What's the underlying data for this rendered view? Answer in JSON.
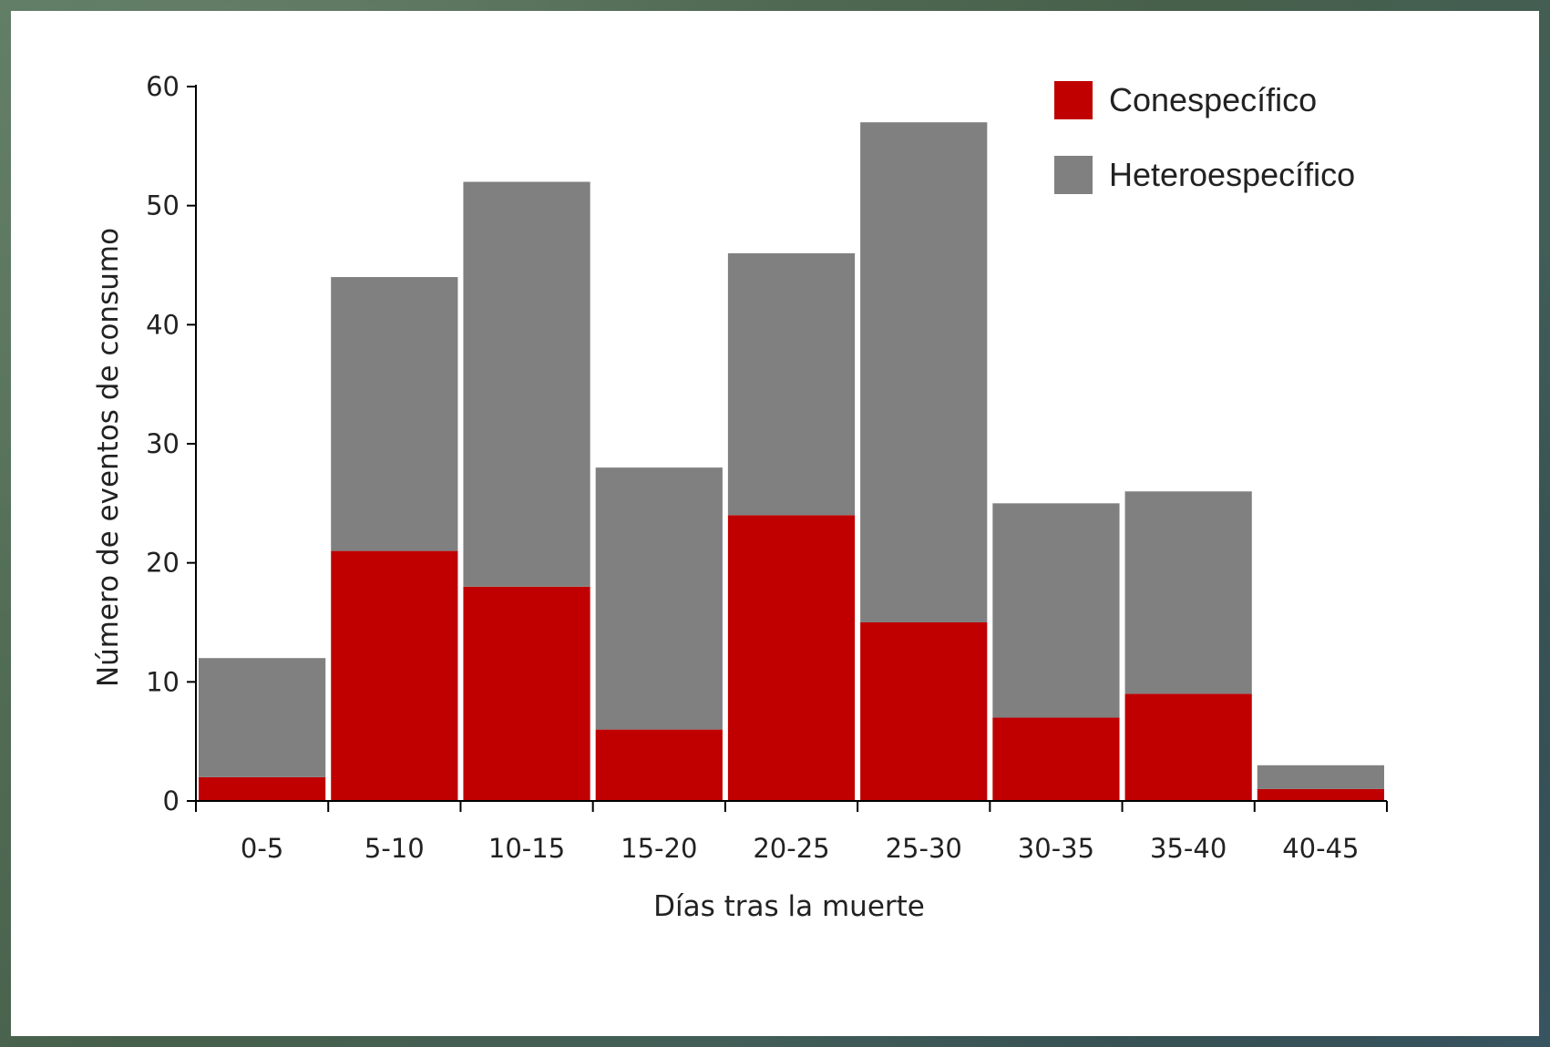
{
  "chart_data": {
    "type": "bar",
    "stacked": true,
    "categories": [
      "0-5",
      "5-10",
      "10-15",
      "15-20",
      "20-25",
      "25-30",
      "30-35",
      "35-40",
      "40-45"
    ],
    "series": [
      {
        "name": "Conespecífico",
        "color": "#c00000",
        "values": [
          2,
          21,
          18,
          6,
          24,
          15,
          7,
          9,
          1
        ]
      },
      {
        "name": "Heteroespecífico",
        "color": "#808080",
        "values": [
          10,
          23,
          34,
          22,
          22,
          42,
          18,
          17,
          2
        ]
      }
    ],
    "title": "",
    "xlabel": "Días tras la muerte",
    "ylabel": "Número de eventos de consumo",
    "ylim": [
      0,
      60
    ],
    "yticks": [
      0,
      10,
      20,
      30,
      40,
      50,
      60
    ],
    "grid": false,
    "legend_position": "top-right"
  }
}
